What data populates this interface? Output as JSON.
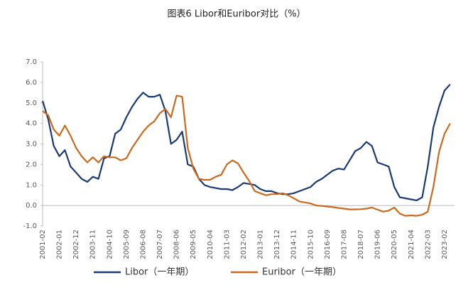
{
  "chart_data": {
    "type": "line",
    "title": "图表6 Libor和Euribor对比（%）",
    "categories": [
      "2001-02",
      null,
      null,
      "2002-01",
      null,
      null,
      "2002-12",
      null,
      null,
      "2003-11",
      null,
      null,
      "2004-10",
      null,
      null,
      "2005-09",
      null,
      null,
      "2006-08",
      null,
      null,
      "2007-07",
      null,
      null,
      "2008-06",
      null,
      null,
      "2009-05",
      null,
      null,
      "2010-04",
      null,
      null,
      "2011-03",
      null,
      null,
      "2012-02",
      null,
      null,
      "2013-01",
      null,
      null,
      "2013-12",
      null,
      null,
      "2014-11",
      null,
      null,
      "2015-10",
      null,
      null,
      "2016-09",
      null,
      null,
      "2017-08",
      null,
      null,
      "2018-07",
      null,
      null,
      "2019-06",
      null,
      null,
      "2020-05",
      null,
      null,
      "2021-04",
      null,
      null,
      "2022-03",
      null,
      null,
      "2023-02",
      null
    ],
    "series": [
      {
        "name": "Libor（一年期）",
        "color": "#1b3a72",
        "values": [
          5.1,
          4.2,
          2.9,
          2.4,
          2.7,
          1.9,
          1.6,
          1.3,
          1.15,
          1.4,
          1.3,
          2.3,
          2.4,
          3.5,
          3.7,
          4.3,
          4.8,
          5.2,
          5.5,
          5.3,
          5.3,
          5.4,
          4.6,
          3.0,
          3.2,
          3.6,
          2.0,
          1.9,
          1.3,
          1.0,
          0.9,
          0.85,
          0.8,
          0.8,
          0.75,
          0.9,
          1.1,
          1.05,
          1.0,
          0.8,
          0.7,
          0.7,
          0.6,
          0.55,
          0.55,
          0.6,
          0.7,
          0.8,
          0.9,
          1.15,
          1.3,
          1.5,
          1.7,
          1.8,
          1.75,
          2.2,
          2.65,
          2.8,
          3.1,
          2.9,
          2.1,
          2.0,
          1.9,
          0.9,
          0.4,
          0.35,
          0.3,
          0.25,
          0.4,
          1.9,
          3.8,
          4.8,
          5.6,
          5.9
        ]
      },
      {
        "name": "Euribor（一年期）",
        "color": "#c96a1f",
        "values": [
          4.6,
          4.4,
          3.7,
          3.4,
          3.9,
          3.4,
          2.8,
          2.4,
          2.1,
          2.35,
          2.1,
          2.4,
          2.35,
          2.35,
          2.2,
          2.3,
          2.8,
          3.2,
          3.6,
          3.9,
          4.1,
          4.5,
          4.7,
          4.3,
          5.35,
          5.3,
          2.8,
          1.8,
          1.3,
          1.25,
          1.25,
          1.4,
          1.5,
          2.0,
          2.2,
          2.05,
          1.6,
          1.2,
          0.7,
          0.6,
          0.5,
          0.55,
          0.55,
          0.6,
          0.5,
          0.35,
          0.2,
          0.15,
          0.1,
          0.0,
          -0.02,
          -0.05,
          -0.08,
          -0.12,
          -0.15,
          -0.19,
          -0.19,
          -0.18,
          -0.15,
          -0.1,
          -0.2,
          -0.3,
          -0.25,
          -0.1,
          -0.4,
          -0.5,
          -0.48,
          -0.5,
          -0.45,
          -0.3,
          0.9,
          2.6,
          3.5,
          4.0
        ]
      }
    ],
    "ylim": [
      -1,
      7
    ],
    "yticks": [
      {
        "value": -1,
        "label": "-1.0"
      },
      {
        "value": 0,
        "label": "0.0"
      },
      {
        "value": 1,
        "label": "1.0"
      },
      {
        "value": 2,
        "label": "2.0"
      },
      {
        "value": 3,
        "label": "3.0"
      },
      {
        "value": 4,
        "label": "4.0"
      },
      {
        "value": 5,
        "label": "5.0"
      },
      {
        "value": 6,
        "label": "6.0"
      },
      {
        "value": 7,
        "label": "7.0"
      }
    ],
    "grid": false,
    "legend": "bottom"
  }
}
